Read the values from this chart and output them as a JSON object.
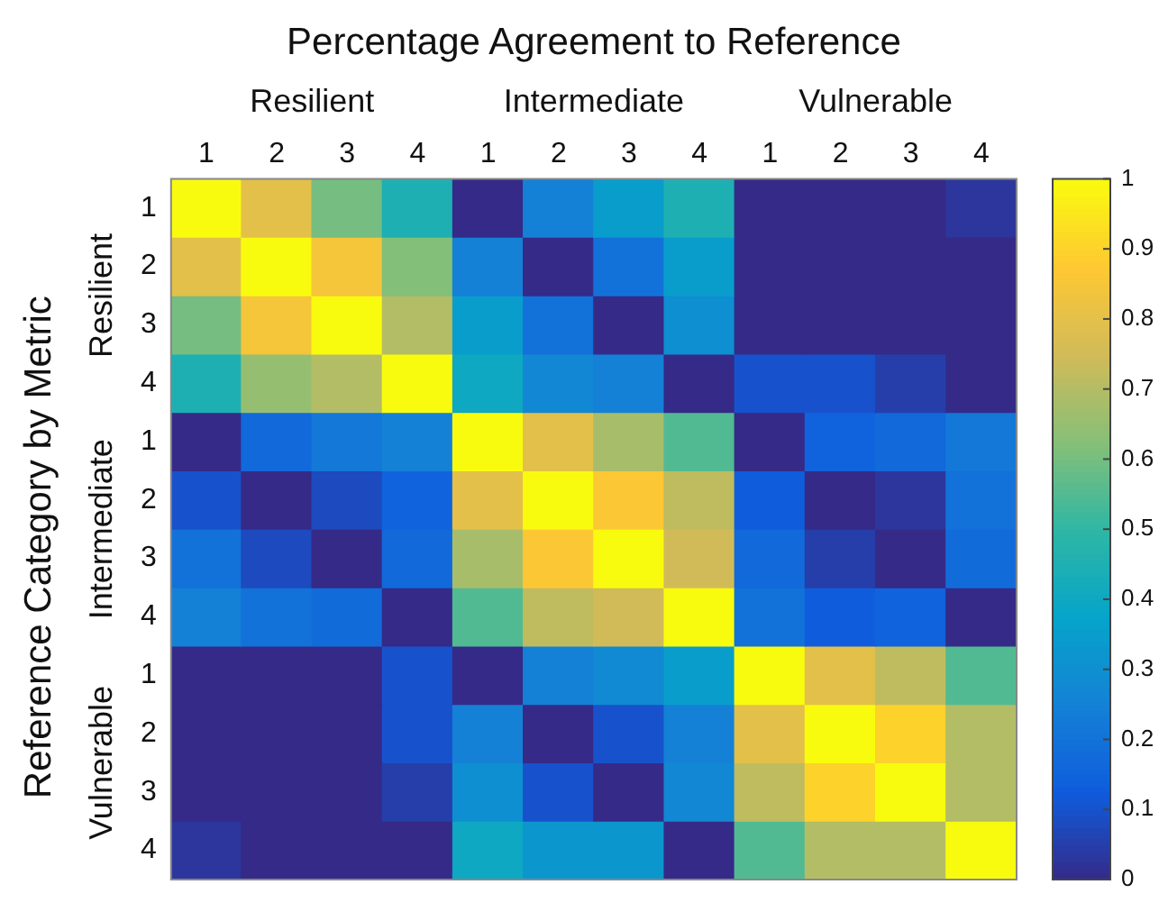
{
  "chart_data": {
    "type": "heatmap",
    "title": "Percentage Agreement to Reference",
    "ylabel": "Reference Category by Metric",
    "annotations": [
      "Resilient",
      "Intermediate",
      "Vulnerable",
      "Resilient",
      "Intermediate",
      "Vulnerable"
    ],
    "categories": [
      "1",
      "2",
      "3",
      "4",
      "1",
      "2",
      "3",
      "4",
      "1",
      "2",
      "3",
      "4"
    ],
    "y_categories": [
      "1",
      "2",
      "3",
      "4",
      "1",
      "2",
      "3",
      "4",
      "1",
      "2",
      "3",
      "4"
    ],
    "cells": [
      [
        1,
        0.8,
        0.6,
        0.45,
        0,
        0.25,
        0.35,
        0.45,
        0,
        0,
        0,
        0.03
      ],
      [
        0.8,
        1,
        0.85,
        0.62,
        0.25,
        0,
        0.2,
        0.35,
        0,
        0,
        0,
        0
      ],
      [
        0.6,
        0.85,
        1,
        0.7,
        0.35,
        0.2,
        0,
        0.3,
        0,
        0,
        0,
        0
      ],
      [
        0.45,
        0.65,
        0.7,
        1,
        0.4,
        0.27,
        0.25,
        0,
        0.1,
        0.1,
        0.05,
        0
      ],
      [
        0,
        0.17,
        0.22,
        0.25,
        1,
        0.8,
        0.68,
        0.55,
        0,
        0.15,
        0.17,
        0.22
      ],
      [
        0.1,
        0,
        0.08,
        0.15,
        0.8,
        1,
        0.87,
        0.72,
        0.13,
        0,
        0.03,
        0.2
      ],
      [
        0.2,
        0.08,
        0,
        0.17,
        0.68,
        0.87,
        1,
        0.75,
        0.17,
        0.05,
        0,
        0.18
      ],
      [
        0.25,
        0.2,
        0.18,
        0,
        0.55,
        0.72,
        0.75,
        1,
        0.2,
        0.13,
        0.15,
        0
      ],
      [
        0,
        0,
        0,
        0.1,
        0,
        0.25,
        0.28,
        0.35,
        1,
        0.8,
        0.72,
        0.55
      ],
      [
        0,
        0,
        0,
        0.1,
        0.25,
        0,
        0.1,
        0.25,
        0.8,
        1,
        0.9,
        0.7
      ],
      [
        0,
        0,
        0,
        0.05,
        0.3,
        0.1,
        0,
        0.27,
        0.72,
        0.9,
        1,
        0.7
      ],
      [
        0.03,
        0,
        0,
        0,
        0.4,
        0.33,
        0.33,
        0,
        0.55,
        0.7,
        0.7,
        1
      ]
    ],
    "clim": [
      0,
      1
    ],
    "cticks": [
      0,
      0.1,
      0.2,
      0.3,
      0.4,
      0.5,
      0.6,
      0.7,
      0.8,
      0.9,
      1
    ]
  }
}
